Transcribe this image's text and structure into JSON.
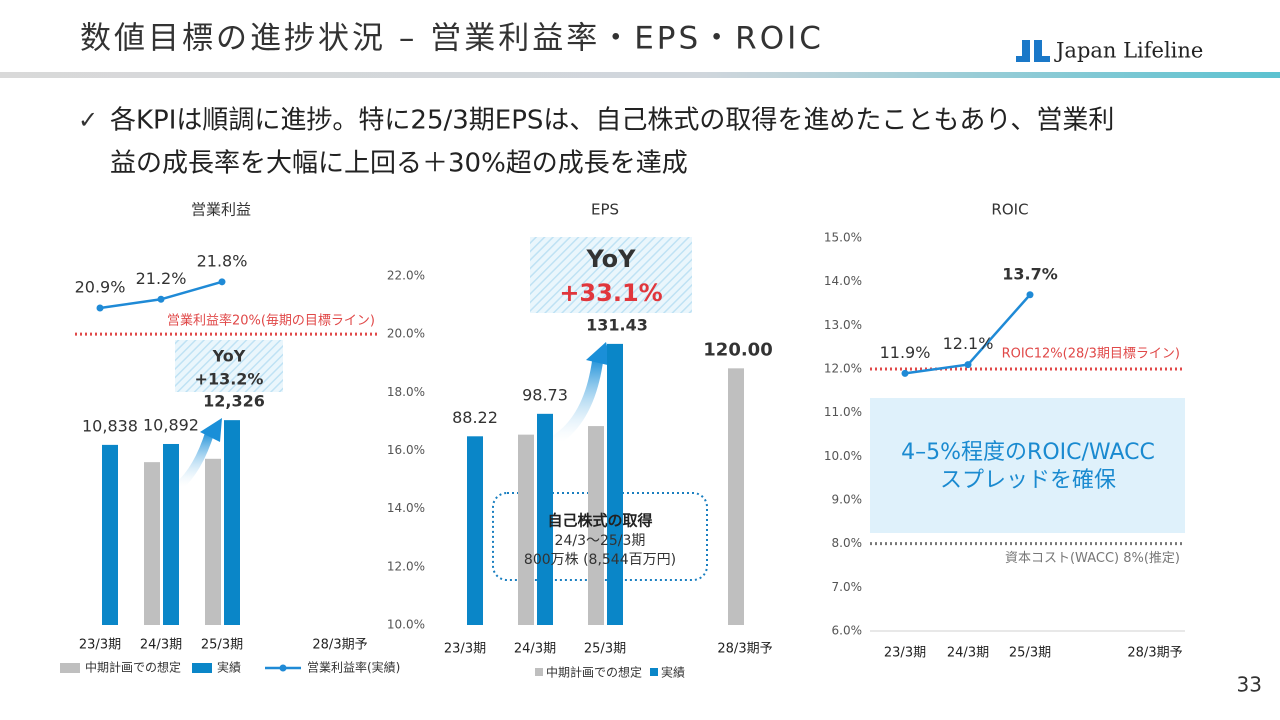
{
  "header": {
    "title": "数値目標の進捗状況 – 営業利益率・EPS・ROIC",
    "logo": "Japan Lifeline"
  },
  "bullet": [
    "各KPIは順調に進捗。特に25/3期EPSは、自己株式の取得を進めたこともあり、営業利",
    "益の成長率を大幅に上回る＋30%超の成長を達成"
  ],
  "page_number": "33",
  "chart_data": [
    {
      "type": "bar",
      "title": "営業利益",
      "categories": [
        "23/3期",
        "24/3期",
        "25/3期",
        "28/3期予"
      ],
      "series": [
        {
          "name": "中期計画での想定",
          "color": "#bfbfbf",
          "values": [
            null,
            9800,
            10000,
            null
          ]
        },
        {
          "name": "実績",
          "color": "#0a86c8",
          "values": [
            10838,
            10892,
            12326,
            null
          ],
          "value_labels": [
            "10,838",
            "10,892",
            "12,326",
            null
          ]
        },
        {
          "name": "営業利益率(実績)",
          "type": "line",
          "axis": "y2",
          "color": "#1f8ad6",
          "values": [
            20.9,
            21.2,
            21.8,
            null
          ],
          "value_labels": [
            "20.9%",
            "21.2%",
            "21.8%",
            null
          ]
        }
      ],
      "ylim": [
        0,
        21000
      ],
      "y2lim": [
        10,
        22
      ],
      "y2ticks": [
        {
          "value": 10,
          "label": "10.0%"
        },
        {
          "value": 12,
          "label": "12.0%"
        },
        {
          "value": 14,
          "label": "14.0%"
        },
        {
          "value": 16,
          "label": "16.0%"
        },
        {
          "value": 18,
          "label": "18.0%"
        },
        {
          "value": 20,
          "label": "20.0%"
        },
        {
          "value": 22,
          "label": "22.0%"
        }
      ],
      "reference_lines": [
        {
          "value": 20,
          "axis": "y2",
          "label": "営業利益率20%(毎期の目標ライン)",
          "color": "#e04848"
        }
      ],
      "annotations": [
        "YoY",
        "+13.2%"
      ],
      "legend": true
    },
    {
      "type": "bar",
      "title": "EPS",
      "categories": [
        "23/3期",
        "24/3期",
        "25/3期",
        "28/3期予"
      ],
      "series": [
        {
          "name": "中期計画での想定",
          "color": "#bfbfbf",
          "values": [
            null,
            89,
            93,
            120
          ],
          "value_labels": [
            null,
            null,
            null,
            "120.00"
          ]
        },
        {
          "name": "実績",
          "color": "#0a86c8",
          "values": [
            88.22,
            98.73,
            131.43,
            null
          ],
          "value_labels": [
            "88.22",
            "98.73",
            "131.43",
            null
          ]
        }
      ],
      "ylim": [
        0,
        180
      ],
      "annotations": [
        "YoY",
        "+33.1%"
      ],
      "callout": [
        "自己株式の取得",
        "24/3～25/3期",
        "800万株 (8,544百万円)"
      ],
      "legend": true
    },
    {
      "type": "line",
      "title": "ROIC",
      "categories": [
        "23/3期",
        "24/3期",
        "25/3期",
        "28/3期予"
      ],
      "series": [
        {
          "color": "#1f8ad6",
          "values": [
            11.9,
            12.1,
            13.7,
            null
          ],
          "value_labels": [
            "11.9%",
            "12.1%",
            "13.7%",
            null
          ]
        }
      ],
      "ylim": [
        6,
        15
      ],
      "yticks": [
        {
          "value": 6,
          "label": "6.0%"
        },
        {
          "value": 7,
          "label": "7.0%"
        },
        {
          "value": 8,
          "label": "8.0%"
        },
        {
          "value": 9,
          "label": "9.0%"
        },
        {
          "value": 10,
          "label": "10.0%"
        },
        {
          "value": 11,
          "label": "11.0%"
        },
        {
          "value": 12,
          "label": "12.0%"
        },
        {
          "value": 13,
          "label": "13.0%"
        },
        {
          "value": 14,
          "label": "14.0%"
        },
        {
          "value": 15,
          "label": "15.0%"
        }
      ],
      "reference_lines": [
        {
          "value": 12,
          "label": "ROIC12%(28/3期目標ライン)",
          "color": "#e04848"
        },
        {
          "value": 8,
          "label": "資本コスト(WACC) 8%(推定)",
          "color": "#777777"
        }
      ],
      "annotations": [
        "4–5%程度のROIC/WACC",
        "スプレッドを確保"
      ]
    }
  ]
}
